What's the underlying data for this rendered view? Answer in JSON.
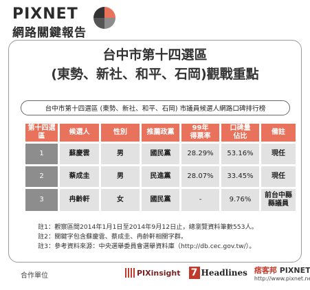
{
  "header": {
    "brand": "PIXNET",
    "subtitle": "網路關鍵報告"
  },
  "title": {
    "line1": "台中市第十四選區",
    "line2": "(東勢、新社、和平、石岡)觀戰重點"
  },
  "banner": "台中市第十四選區 (東勢、新社、和平、石岡) 市議員候選人網路口碑排行榜",
  "table": {
    "headers": [
      "第十四選區",
      "候選人",
      "性別",
      "推薦政黨",
      "99年\n得票率",
      "口碑量\n佔比",
      "備註"
    ],
    "rows": [
      [
        "1",
        "蘇慶雲",
        "男",
        "國民黨",
        "28.29%",
        "53.16%",
        "現任"
      ],
      [
        "2",
        "蔡成圭",
        "男",
        "民進黨",
        "28.07%",
        "33.45%",
        "現任"
      ],
      [
        "3",
        "冉齡軒",
        "女",
        "國民黨",
        "-",
        "9.76%",
        "前台中縣\n縣議員"
      ]
    ]
  },
  "notes": [
    "註1：觀察區間2014年1月1日至2014年9月12日止，總瀏覽資料筆數553人。",
    "註2：關鍵字包含蘇慶雲、蔡成圭、冉齡軒相關字群。",
    "註3：參考資料來源：中央選舉委員會選舉資料庫（http://db.cec.gov.tw/）。"
  ],
  "footer": {
    "label": "合作單位",
    "partner1": "PIXinsight",
    "partner2_num": "7",
    "partner2_name": "Headlines",
    "partner3_brand_a": "痞客邦",
    "partner3_brand_b": "PIXNET",
    "partner3_url": "http://www.pixnet.net/"
  },
  "colors": {
    "header_accent": "#e8725c",
    "rank_gray": "#8d8d8d",
    "cell_gray": "#e2e2e2"
  }
}
